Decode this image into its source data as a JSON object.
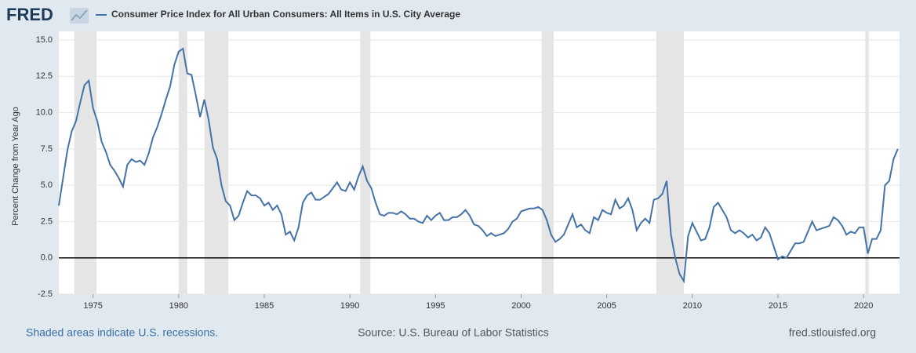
{
  "chart_data": {
    "type": "line",
    "logo": "FRED",
    "y_label": "Percent Change from Year Ago",
    "note": "Shaded areas indicate U.S. recessions.",
    "source": "Source: U.S. Bureau of Labor Statistics",
    "site": "fred.stlouisfed.org",
    "xlim": [
      1973,
      2022.1
    ],
    "xticks": [
      1975,
      1980,
      1985,
      1990,
      1995,
      2000,
      2005,
      2010,
      2015,
      2020
    ],
    "ylim": [
      -2.5,
      15.0
    ],
    "yticks": [
      {
        "value": 15,
        "label": "15.0"
      },
      12.5,
      {
        "value": 10,
        "label": "10.0"
      },
      7.5,
      {
        "value": 5,
        "label": "5.0"
      },
      2.5,
      {
        "value": 0,
        "label": "0.0"
      },
      -2.5
    ],
    "grid": true,
    "recession_color": "#e5e5e5",
    "recessions": [
      [
        1973.9,
        1975.2
      ],
      [
        1980.0,
        1980.5
      ],
      [
        1981.5,
        1982.9
      ],
      [
        1990.6,
        1991.2
      ],
      [
        2001.2,
        2001.9
      ],
      [
        2007.9,
        2009.5
      ],
      [
        2020.1,
        2020.3
      ]
    ],
    "x": [
      1973,
      1973.25,
      1973.5,
      1973.75,
      1974,
      1974.25,
      1974.5,
      1974.75,
      1975,
      1975.25,
      1975.5,
      1975.75,
      1976,
      1976.25,
      1976.5,
      1976.75,
      1977,
      1977.25,
      1977.5,
      1977.75,
      1978,
      1978.25,
      1978.5,
      1978.75,
      1979,
      1979.25,
      1979.5,
      1979.75,
      1980,
      1980.25,
      1980.5,
      1980.75,
      1981,
      1981.25,
      1981.5,
      1981.75,
      1982,
      1982.25,
      1982.5,
      1982.75,
      1983,
      1983.25,
      1983.5,
      1983.75,
      1984,
      1984.25,
      1984.5,
      1984.75,
      1985,
      1985.25,
      1985.5,
      1985.75,
      1986,
      1986.25,
      1986.5,
      1986.75,
      1987,
      1987.25,
      1987.5,
      1987.75,
      1988,
      1988.25,
      1988.5,
      1988.75,
      1989,
      1989.25,
      1989.5,
      1989.75,
      1990,
      1990.25,
      1990.5,
      1990.75,
      1991,
      1991.25,
      1991.5,
      1991.75,
      1992,
      1992.25,
      1992.5,
      1992.75,
      1993,
      1993.25,
      1993.5,
      1993.75,
      1994,
      1994.25,
      1994.5,
      1994.75,
      1995,
      1995.25,
      1995.5,
      1995.75,
      1996,
      1996.25,
      1996.5,
      1996.75,
      1997,
      1997.25,
      1997.5,
      1997.75,
      1998,
      1998.25,
      1998.5,
      1998.75,
      1999,
      1999.25,
      1999.5,
      1999.75,
      2000,
      2000.25,
      2000.5,
      2000.75,
      2001,
      2001.25,
      2001.5,
      2001.75,
      2002,
      2002.25,
      2002.5,
      2002.75,
      2003,
      2003.25,
      2003.5,
      2003.75,
      2004,
      2004.25,
      2004.5,
      2004.75,
      2005,
      2005.25,
      2005.5,
      2005.75,
      2006,
      2006.25,
      2006.5,
      2006.75,
      2007,
      2007.25,
      2007.5,
      2007.75,
      2008,
      2008.25,
      2008.5,
      2008.75,
      2009,
      2009.25,
      2009.5,
      2009.75,
      2010,
      2010.25,
      2010.5,
      2010.75,
      2011,
      2011.25,
      2011.5,
      2011.75,
      2012,
      2012.25,
      2012.5,
      2012.75,
      2013,
      2013.25,
      2013.5,
      2013.75,
      2014,
      2014.25,
      2014.5,
      2014.75,
      2015,
      2015.25,
      2015.5,
      2015.75,
      2016,
      2016.25,
      2016.5,
      2016.75,
      2017,
      2017.25,
      2017.5,
      2017.75,
      2018,
      2018.25,
      2018.5,
      2018.75,
      2019,
      2019.25,
      2019.5,
      2019.75,
      2020,
      2020.25,
      2020.5,
      2020.75,
      2021,
      2021.25,
      2021.5,
      2021.75,
      2022
    ],
    "series": [
      {
        "name": "Consumer Price Index for All Urban Consumers: All Items in U.S. City Average",
        "color": "#4572a7",
        "values": [
          3.6,
          5.5,
          7.4,
          8.7,
          9.4,
          10.7,
          11.9,
          12.2,
          10.3,
          9.4,
          8.0,
          7.3,
          6.4,
          6.0,
          5.5,
          4.9,
          6.4,
          6.8,
          6.6,
          6.7,
          6.4,
          7.2,
          8.3,
          9.0,
          9.9,
          10.9,
          11.8,
          13.3,
          14.2,
          14.4,
          12.7,
          12.6,
          11.2,
          9.7,
          10.9,
          9.5,
          7.6,
          6.8,
          5.0,
          3.9,
          3.6,
          2.6,
          2.9,
          3.8,
          4.6,
          4.3,
          4.3,
          4.1,
          3.6,
          3.8,
          3.3,
          3.6,
          3.0,
          1.6,
          1.8,
          1.2,
          2.1,
          3.8,
          4.3,
          4.5,
          4.0,
          4.0,
          4.2,
          4.4,
          4.8,
          5.2,
          4.7,
          4.6,
          5.2,
          4.7,
          5.6,
          6.3,
          5.3,
          4.8,
          3.8,
          3.0,
          2.9,
          3.1,
          3.1,
          3.0,
          3.2,
          3.0,
          2.7,
          2.7,
          2.5,
          2.4,
          2.9,
          2.6,
          2.9,
          3.1,
          2.6,
          2.6,
          2.8,
          2.8,
          3.0,
          3.3,
          2.9,
          2.3,
          2.2,
          1.9,
          1.5,
          1.7,
          1.5,
          1.6,
          1.7,
          2.0,
          2.5,
          2.7,
          3.2,
          3.3,
          3.4,
          3.4,
          3.5,
          3.3,
          2.6,
          1.6,
          1.1,
          1.3,
          1.6,
          2.3,
          3.0,
          2.1,
          2.3,
          1.9,
          1.7,
          2.8,
          2.6,
          3.3,
          3.1,
          3.0,
          4.0,
          3.4,
          3.6,
          4.1,
          3.3,
          1.9,
          2.4,
          2.7,
          2.4,
          4.0,
          4.1,
          4.4,
          5.3,
          1.6,
          0.0,
          -1.1,
          -1.6,
          1.5,
          2.4,
          1.8,
          1.2,
          1.3,
          2.1,
          3.5,
          3.8,
          3.3,
          2.8,
          1.9,
          1.7,
          1.9,
          1.7,
          1.4,
          1.6,
          1.2,
          1.4,
          2.1,
          1.7,
          0.8,
          -0.1,
          0.1,
          0.0,
          0.5,
          1.0,
          1.0,
          1.1,
          1.8,
          2.5,
          1.9,
          2.0,
          2.1,
          2.2,
          2.8,
          2.6,
          2.2,
          1.6,
          1.8,
          1.7,
          2.1,
          2.1,
          0.3,
          1.3,
          1.3,
          1.9,
          5.0,
          5.3,
          6.8,
          7.5
        ]
      }
    ]
  }
}
